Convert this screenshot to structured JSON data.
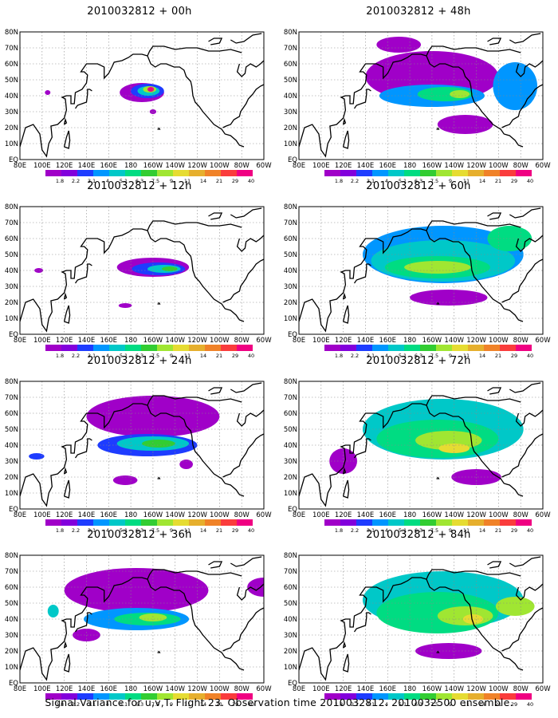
{
  "footer": "Signal Variance for u,v,T. Flight 23. Observation time 2010032812. 2010032500 ensemble.",
  "panels": [
    {
      "title": "2010032812 + 00h"
    },
    {
      "title": "2010032812 + 48h"
    },
    {
      "title": "2010032812 + 12h"
    },
    {
      "title": "2010032812 + 60h"
    },
    {
      "title": "2010032812 + 24h"
    },
    {
      "title": "2010032812 + 72h"
    },
    {
      "title": "2010032812 + 36h"
    },
    {
      "title": "2010032812 + 84h"
    }
  ],
  "chart_data": {
    "type": "heatmap",
    "lon_ticks": [
      "80E",
      "100E",
      "120E",
      "140E",
      "160E",
      "180",
      "160W",
      "140W",
      "120W",
      "100W",
      "80W",
      "60W"
    ],
    "lat_ticks": [
      "EQ",
      "10N",
      "20N",
      "30N",
      "40N",
      "50N",
      "60N",
      "70N",
      "80N"
    ],
    "xlim": [
      "80E",
      "60W"
    ],
    "ylim": [
      "EQ",
      "80N"
    ],
    "grid": true,
    "colorbar": {
      "levels": [
        "1.8",
        "2.2",
        "3.1",
        "4",
        "5.1",
        "6.3",
        "7.5",
        "9",
        "11",
        "14",
        "21",
        "29",
        "40"
      ],
      "colors": [
        "#a000c8",
        "#8200dc",
        "#1e3cff",
        "#0096ff",
        "#00c8c8",
        "#00dc82",
        "#32cd32",
        "#a0e632",
        "#e6dc32",
        "#e6af2d",
        "#f08228",
        "#fa3c3c",
        "#f00082"
      ]
    },
    "panels": [
      {
        "lead": "00h",
        "fields": [
          {
            "lon": 190,
            "lat": 42,
            "w": 40,
            "h": 12,
            "level": 0
          },
          {
            "lon": 195,
            "lat": 43,
            "w": 30,
            "h": 9,
            "level": 2
          },
          {
            "lon": 196,
            "lat": 43,
            "w": 20,
            "h": 6,
            "level": 4
          },
          {
            "lon": 197,
            "lat": 44,
            "w": 12,
            "h": 4,
            "level": 7
          },
          {
            "lon": 198,
            "lat": 44,
            "w": 6,
            "h": 3,
            "level": 12
          },
          {
            "lon": 105,
            "lat": 42,
            "w": 5,
            "h": 3,
            "level": 0
          },
          {
            "lon": 200,
            "lat": 30,
            "w": 6,
            "h": 3,
            "level": 0
          }
        ]
      },
      {
        "lead": "48h",
        "fields": [
          {
            "lon": 200,
            "lat": 52,
            "w": 120,
            "h": 32,
            "level": 0
          },
          {
            "lon": 200,
            "lat": 40,
            "w": 95,
            "h": 14,
            "level": 3
          },
          {
            "lon": 212,
            "lat": 41,
            "w": 50,
            "h": 9,
            "level": 5
          },
          {
            "lon": 225,
            "lat": 41,
            "w": 18,
            "h": 5,
            "level": 7
          },
          {
            "lon": 275,
            "lat": 46,
            "w": 40,
            "h": 30,
            "level": 3
          },
          {
            "lon": 230,
            "lat": 22,
            "w": 50,
            "h": 12,
            "level": 0
          },
          {
            "lon": 170,
            "lat": 72,
            "w": 40,
            "h": 10,
            "level": 0
          }
        ]
      },
      {
        "lead": "12h",
        "fields": [
          {
            "lon": 200,
            "lat": 42,
            "w": 65,
            "h": 12,
            "level": 0
          },
          {
            "lon": 205,
            "lat": 41,
            "w": 48,
            "h": 8,
            "level": 2
          },
          {
            "lon": 210,
            "lat": 41,
            "w": 30,
            "h": 5,
            "level": 4
          },
          {
            "lon": 215,
            "lat": 41,
            "w": 14,
            "h": 3,
            "level": 6
          },
          {
            "lon": 97,
            "lat": 40,
            "w": 8,
            "h": 3,
            "level": 0
          },
          {
            "lon": 175,
            "lat": 18,
            "w": 12,
            "h": 3,
            "level": 0
          }
        ]
      },
      {
        "lead": "60h",
        "fields": [
          {
            "lon": 210,
            "lat": 50,
            "w": 145,
            "h": 36,
            "level": 3
          },
          {
            "lon": 210,
            "lat": 46,
            "w": 130,
            "h": 26,
            "level": 4
          },
          {
            "lon": 205,
            "lat": 42,
            "w": 95,
            "h": 14,
            "level": 5
          },
          {
            "lon": 205,
            "lat": 42,
            "w": 60,
            "h": 8,
            "level": 7
          },
          {
            "lon": 270,
            "lat": 60,
            "w": 40,
            "h": 16,
            "level": 5
          },
          {
            "lon": 215,
            "lat": 23,
            "w": 70,
            "h": 10,
            "level": 0
          }
        ]
      },
      {
        "lead": "24h",
        "fields": [
          {
            "lon": 200,
            "lat": 58,
            "w": 120,
            "h": 26,
            "level": 0
          },
          {
            "lon": 195,
            "lat": 40,
            "w": 90,
            "h": 14,
            "level": 2
          },
          {
            "lon": 200,
            "lat": 41,
            "w": 65,
            "h": 9,
            "level": 4
          },
          {
            "lon": 205,
            "lat": 41,
            "w": 30,
            "h": 5,
            "level": 6
          },
          {
            "lon": 95,
            "lat": 33,
            "w": 14,
            "h": 4,
            "level": 2
          },
          {
            "lon": 175,
            "lat": 18,
            "w": 22,
            "h": 6,
            "level": 0
          },
          {
            "lon": 230,
            "lat": 28,
            "w": 12,
            "h": 6,
            "level": 0
          }
        ]
      },
      {
        "lead": "72h",
        "fields": [
          {
            "lon": 210,
            "lat": 50,
            "w": 145,
            "h": 38,
            "level": 4
          },
          {
            "lon": 205,
            "lat": 44,
            "w": 110,
            "h": 24,
            "level": 5
          },
          {
            "lon": 215,
            "lat": 43,
            "w": 60,
            "h": 12,
            "level": 7
          },
          {
            "lon": 220,
            "lat": 38,
            "w": 28,
            "h": 6,
            "level": 8
          },
          {
            "lon": 240,
            "lat": 20,
            "w": 45,
            "h": 10,
            "level": 0
          },
          {
            "lon": 120,
            "lat": 30,
            "w": 25,
            "h": 16,
            "level": 0
          }
        ]
      },
      {
        "lead": "36h",
        "fields": [
          {
            "lon": 185,
            "lat": 58,
            "w": 130,
            "h": 28,
            "level": 0
          },
          {
            "lon": 185,
            "lat": 40,
            "w": 95,
            "h": 14,
            "level": 3
          },
          {
            "lon": 195,
            "lat": 40,
            "w": 60,
            "h": 8,
            "level": 5
          },
          {
            "lon": 200,
            "lat": 41,
            "w": 25,
            "h": 5,
            "level": 7
          },
          {
            "lon": 110,
            "lat": 45,
            "w": 10,
            "h": 8,
            "level": 4
          },
          {
            "lon": 140,
            "lat": 30,
            "w": 25,
            "h": 8,
            "level": 0
          },
          {
            "lon": 300,
            "lat": 60,
            "w": 30,
            "h": 12,
            "level": 0
          }
        ]
      },
      {
        "lead": "84h",
        "fields": [
          {
            "lon": 210,
            "lat": 52,
            "w": 145,
            "h": 36,
            "level": 4
          },
          {
            "lon": 205,
            "lat": 44,
            "w": 110,
            "h": 26,
            "level": 5
          },
          {
            "lon": 230,
            "lat": 42,
            "w": 50,
            "h": 12,
            "level": 7
          },
          {
            "lon": 237,
            "lat": 40,
            "w": 18,
            "h": 6,
            "level": 8
          },
          {
            "lon": 275,
            "lat": 48,
            "w": 35,
            "h": 12,
            "level": 7
          },
          {
            "lon": 215,
            "lat": 20,
            "w": 60,
            "h": 10,
            "level": 0
          }
        ]
      }
    ]
  }
}
